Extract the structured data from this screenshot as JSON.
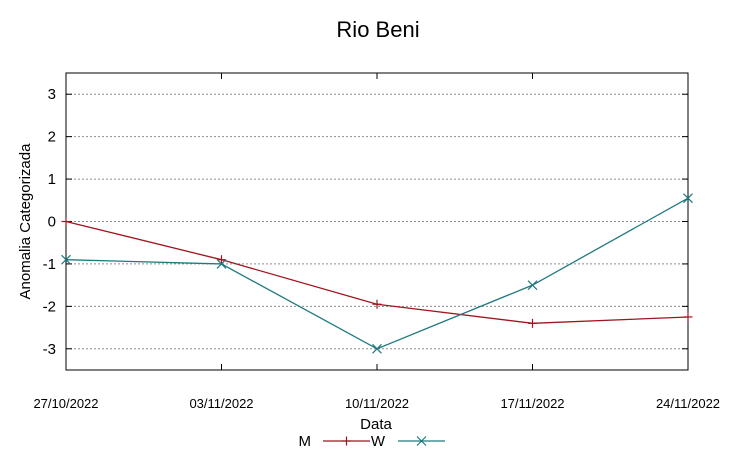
{
  "chart_data": {
    "type": "line",
    "title": "Rio Beni",
    "xlabel": "Data",
    "ylabel": "Anomalia Categorizada",
    "categories": [
      "27/10/2022",
      "03/11/2022",
      "10/11/2022",
      "17/11/2022",
      "24/11/2022"
    ],
    "ylim": [
      -3.5,
      3.5
    ],
    "yticks": [
      3,
      2,
      1,
      0,
      -1,
      -2,
      -3
    ],
    "ytick_labels": [
      "3",
      "2",
      "1",
      "0",
      "-1",
      "-2",
      "-3"
    ],
    "grid": true,
    "legend_position": "bottom",
    "series": [
      {
        "name": "M",
        "color": "#a0141e",
        "marker": "plus",
        "values": [
          0.0,
          -0.9,
          -1.95,
          -2.4,
          -2.25
        ]
      },
      {
        "name": "W",
        "color": "#1f7a80",
        "marker": "cross",
        "values": [
          -0.9,
          -1.0,
          -3.0,
          -1.5,
          0.55
        ]
      }
    ]
  }
}
